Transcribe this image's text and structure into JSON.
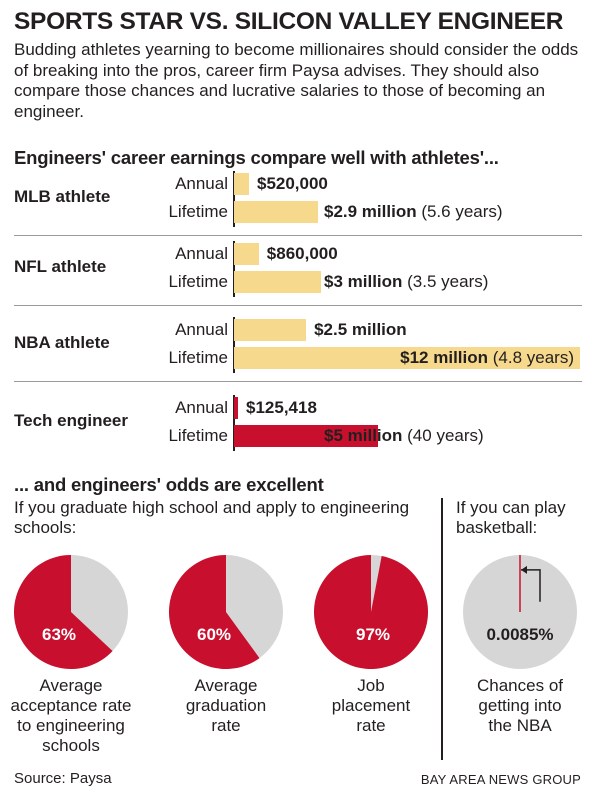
{
  "header": {
    "title": "SPORTS STAR VS. SILICON VALLEY ENGINEER",
    "intro": "Budding athletes yearning to become millionaires should consider the odds of breaking into the pros, career firm Paysa advises. They should also compare those chances and lucrative salaries to those of becoming an engineer."
  },
  "colors": {
    "athlete": "#f6d98c",
    "engineer": "#c8102e",
    "pie_rest": "#d6d6d6",
    "ink": "#231f20"
  },
  "chart_data": [
    {
      "type": "bar",
      "title": "Engineers' career earnings compare well with athletes'...",
      "unit": "USD",
      "groups": [
        {
          "name": "MLB athlete",
          "annual": 520000,
          "annual_label": "$520,000",
          "lifetime": 2900000,
          "lifetime_label": "$2.9 million",
          "lifetime_note": "(5.6 years)",
          "color": "athlete"
        },
        {
          "name": "NFL athlete",
          "annual": 860000,
          "annual_label": "$860,000",
          "lifetime": 3000000,
          "lifetime_label": "$3 million",
          "lifetime_note": "(3.5 years)",
          "color": "athlete"
        },
        {
          "name": "NBA athlete",
          "annual": 2500000,
          "annual_label": "$2.5 million",
          "lifetime": 12000000,
          "lifetime_label": "$12 million",
          "lifetime_note": "(4.8 years)",
          "color": "athlete"
        },
        {
          "name": "Tech engineer",
          "annual": 125418,
          "annual_label": "$125,418",
          "lifetime": 5000000,
          "lifetime_label": "$5 million",
          "lifetime_note": "(40 years)",
          "color": "engineer"
        }
      ],
      "row_labels": {
        "annual": "Annual",
        "lifetime": "Lifetime"
      }
    },
    {
      "type": "pie",
      "title": "... and engineers' odds are excellent",
      "lead": "If you graduate high school and apply to engineering schools:",
      "slices": [
        {
          "value": 63,
          "label": "63%",
          "caption": [
            "Average",
            "acceptance rate",
            "to engineering",
            "schools"
          ]
        },
        {
          "value": 60,
          "label": "60%",
          "caption": [
            "Average",
            "graduation",
            "rate"
          ]
        },
        {
          "value": 97,
          "label": "97%",
          "caption": [
            "Job",
            "placement",
            "rate"
          ]
        }
      ]
    },
    {
      "type": "pie",
      "lead": "If you can play basketball:",
      "slices": [
        {
          "value": 0.0085,
          "label": "0.0085%",
          "caption": [
            "Chances of",
            "getting into",
            "the NBA"
          ]
        }
      ]
    }
  ],
  "footer": {
    "source": "Source: Paysa",
    "credit": "BAY AREA NEWS GROUP"
  }
}
